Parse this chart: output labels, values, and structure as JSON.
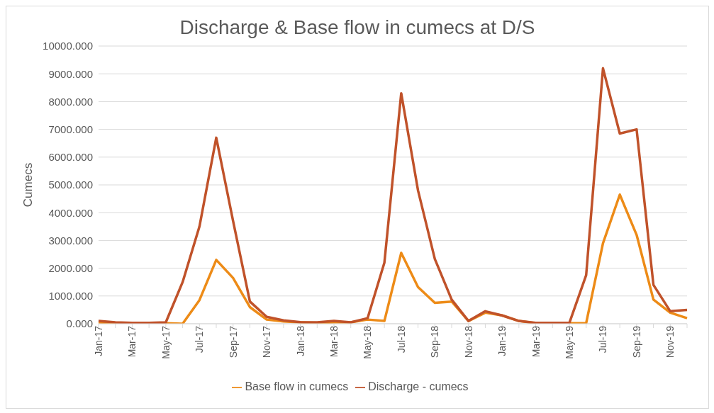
{
  "chart_data": {
    "type": "line",
    "title": "Discharge & Base flow in cumecs at D/S",
    "ylabel": "Cumecs",
    "categories": [
      "Jan-17",
      null,
      "Mar-17",
      null,
      "May-17",
      null,
      "Jul-17",
      null,
      "Sep-17",
      null,
      "Nov-17",
      null,
      "Jan-18",
      null,
      "Mar-18",
      null,
      "May-18",
      null,
      "Jul-18",
      null,
      "Sep-18",
      null,
      "Nov-18",
      null,
      "Jan-19",
      null,
      "Mar-19",
      null,
      "May-19",
      null,
      "Jul-19",
      null,
      "Sep-19",
      null,
      "Nov-19",
      null
    ],
    "series": [
      {
        "name": "Base flow in cumecs",
        "color": "#ed8b17",
        "values": [
          50,
          20,
          20,
          20,
          20,
          0,
          850,
          2300,
          1650,
          600,
          150,
          80,
          50,
          30,
          50,
          50,
          150,
          100,
          2550,
          1320,
          750,
          800,
          100,
          400,
          300,
          100,
          20,
          20,
          20,
          20,
          2900,
          4650,
          3200,
          870,
          400,
          200
        ]
      },
      {
        "name": "Discharge - cumecs",
        "color": "#c0522a",
        "values": [
          100,
          50,
          30,
          30,
          50,
          1500,
          3500,
          6700,
          3700,
          800,
          250,
          120,
          60,
          50,
          100,
          50,
          200,
          2200,
          8300,
          4800,
          2330,
          870,
          100,
          450,
          300,
          100,
          30,
          30,
          30,
          1750,
          9200,
          6850,
          7000,
          1400,
          450,
          500
        ]
      }
    ],
    "ylim": [
      0,
      10000
    ],
    "yticks": [
      {
        "value": 0,
        "label": "0.000"
      },
      {
        "value": 1000,
        "label": "1000.000"
      },
      {
        "value": 2000,
        "label": "2000.000"
      },
      {
        "value": 3000,
        "label": "3000.000"
      },
      {
        "value": 4000,
        "label": "4000.000"
      },
      {
        "value": 5000,
        "label": "5000.000"
      },
      {
        "value": 6000,
        "label": "6000.000"
      },
      {
        "value": 7000,
        "label": "7000.000"
      },
      {
        "value": 8000,
        "label": "8000.000"
      },
      {
        "value": 9000,
        "label": "9000.000"
      },
      {
        "value": 10000,
        "label": "10000.000"
      }
    ],
    "grid": "y",
    "legend": "bottom",
    "marker": "none",
    "line_style": "solid"
  }
}
